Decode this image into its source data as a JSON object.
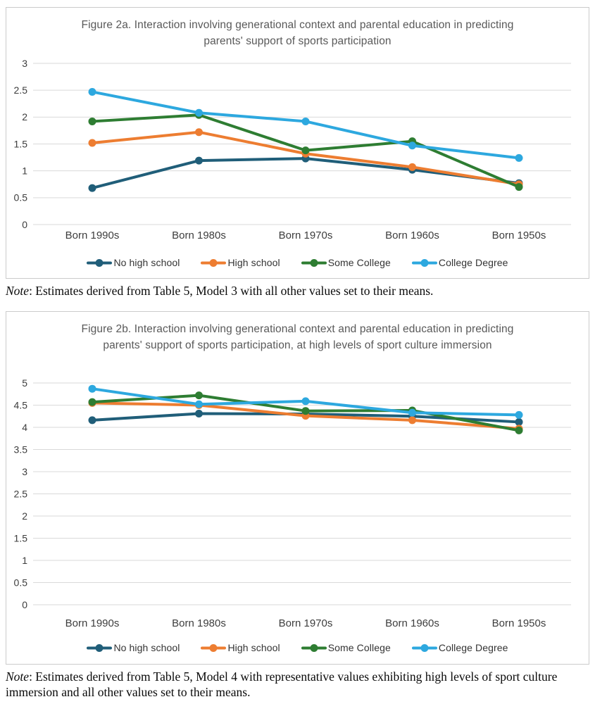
{
  "page": {
    "background": "#ffffff",
    "border_color": "#cbcbcb"
  },
  "notes": [
    {
      "label": "Note",
      "text": ": Estimates derived from Table 5, Model 3 with all other values set to their means."
    },
    {
      "label": "Note",
      "text": ": Estimates derived from Table 5, Model 4 with representative values exhibiting high levels of sport culture immersion and all other values set to their means."
    }
  ],
  "chart_data": [
    {
      "type": "line",
      "title": "Figure 2a. Interaction involving generational context and parental education in predicting parents' support of sports participation",
      "categories": [
        "Born 1990s",
        "Born 1980s",
        "Born 1970s",
        "Born 1960s",
        "Born 1950s"
      ],
      "series": [
        {
          "name": "No high school",
          "color": "#205e79",
          "values": [
            0.68,
            1.19,
            1.23,
            1.02,
            0.77
          ]
        },
        {
          "name": "High school",
          "color": "#ed7d31",
          "values": [
            1.52,
            1.72,
            1.32,
            1.07,
            0.75
          ]
        },
        {
          "name": "Some College",
          "color": "#2e7d32",
          "values": [
            1.92,
            2.04,
            1.38,
            1.55,
            0.7
          ]
        },
        {
          "name": "College Degree",
          "color": "#2da8df",
          "values": [
            2.47,
            2.08,
            1.92,
            1.47,
            1.24
          ]
        }
      ],
      "ylim": [
        0,
        3
      ],
      "ytick_step": 0.5,
      "grid": true,
      "legend_position": "bottom",
      "gridline_color": "#d9d9d9",
      "tick_label_color": "#3d3d3d",
      "title_color": "#595959"
    },
    {
      "type": "line",
      "title": "Figure 2b. Interaction involving generational context and parental education in predicting parents' support of sports participation, at high levels of sport culture immersion",
      "categories": [
        "Born 1990s",
        "Born 1980s",
        "Born 1970s",
        "Born 1960s",
        "Born 1950s"
      ],
      "series": [
        {
          "name": "No high school",
          "color": "#205e79",
          "values": [
            4.16,
            4.31,
            4.3,
            4.25,
            4.12
          ]
        },
        {
          "name": "High school",
          "color": "#ed7d31",
          "values": [
            4.55,
            4.5,
            4.26,
            4.16,
            3.97
          ]
        },
        {
          "name": "Some College",
          "color": "#2e7d32",
          "values": [
            4.57,
            4.72,
            4.37,
            4.38,
            3.93
          ]
        },
        {
          "name": "College Degree",
          "color": "#2da8df",
          "values": [
            4.87,
            4.52,
            4.59,
            4.33,
            4.28
          ]
        }
      ],
      "ylim": [
        0,
        5
      ],
      "ytick_step": 0.5,
      "grid": true,
      "legend_position": "bottom",
      "gridline_color": "#d9d9d9",
      "tick_label_color": "#3d3d3d",
      "title_color": "#595959"
    }
  ]
}
